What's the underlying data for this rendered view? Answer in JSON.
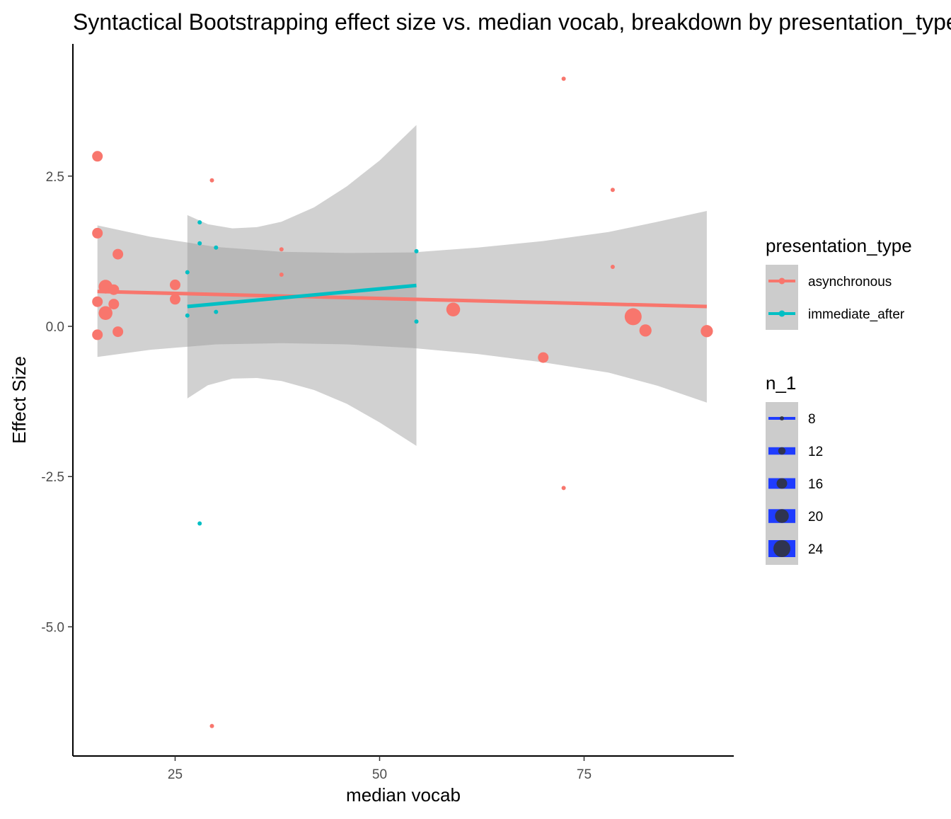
{
  "chart_data": {
    "type": "scatter",
    "title": "Syntactical Bootstrapping effect size vs. median vocab, breakdown by presentation_type",
    "xlabel": "median vocab",
    "ylabel": "Effect Size",
    "xlim": [
      12.5,
      93.3
    ],
    "ylim": [
      -7.15,
      4.7
    ],
    "x_ticks": [
      25,
      50,
      75
    ],
    "x_tick_labels": [
      "25",
      "50",
      "75"
    ],
    "y_ticks": [
      2.5,
      0.0,
      -2.5,
      -5.0
    ],
    "y_tick_labels": [
      "2.5",
      "0.0",
      "-2.5",
      "-5.0"
    ],
    "grid": false,
    "legend_position": "right",
    "colors": {
      "asynchronous": "#F8766D",
      "immediate_after": "#00BFC4",
      "ribbon": "#999999",
      "size_legend_key": "#1F3CFF"
    },
    "series": [
      {
        "name": "asynchronous",
        "points": [
          {
            "x": 15.5,
            "y": 2.83,
            "n": 16
          },
          {
            "x": 15.5,
            "y": 1.55,
            "n": 16
          },
          {
            "x": 15.5,
            "y": 0.41,
            "n": 16
          },
          {
            "x": 15.5,
            "y": -0.14,
            "n": 16
          },
          {
            "x": 16.5,
            "y": 0.66,
            "n": 20
          },
          {
            "x": 16.5,
            "y": 0.22,
            "n": 20
          },
          {
            "x": 17.5,
            "y": 0.61,
            "n": 16
          },
          {
            "x": 17.5,
            "y": 0.37,
            "n": 16
          },
          {
            "x": 18.0,
            "y": 1.2,
            "n": 16
          },
          {
            "x": 18.0,
            "y": -0.09,
            "n": 16
          },
          {
            "x": 25.0,
            "y": 0.69,
            "n": 16
          },
          {
            "x": 25.0,
            "y": 0.45,
            "n": 16
          },
          {
            "x": 29.5,
            "y": 2.43,
            "n": 8
          },
          {
            "x": 29.5,
            "y": -6.65,
            "n": 8
          },
          {
            "x": 38.0,
            "y": 1.28,
            "n": 8
          },
          {
            "x": 38.0,
            "y": 0.86,
            "n": 8
          },
          {
            "x": 59.0,
            "y": 0.28,
            "n": 20
          },
          {
            "x": 70.0,
            "y": -0.52,
            "n": 16
          },
          {
            "x": 72.5,
            "y": 4.12,
            "n": 8
          },
          {
            "x": 72.5,
            "y": -2.69,
            "n": 8
          },
          {
            "x": 78.5,
            "y": 2.27,
            "n": 8
          },
          {
            "x": 78.5,
            "y": 0.99,
            "n": 8
          },
          {
            "x": 81.0,
            "y": 0.16,
            "n": 24
          },
          {
            "x": 82.5,
            "y": -0.07,
            "n": 18
          },
          {
            "x": 90.0,
            "y": -0.08,
            "n": 18
          }
        ]
      },
      {
        "name": "immediate_after",
        "points": [
          {
            "x": 26.5,
            "y": 0.9,
            "n": 8
          },
          {
            "x": 26.5,
            "y": 0.18,
            "n": 8
          },
          {
            "x": 28.0,
            "y": 1.73,
            "n": 8
          },
          {
            "x": 28.0,
            "y": 1.38,
            "n": 8
          },
          {
            "x": 28.0,
            "y": -3.28,
            "n": 8
          },
          {
            "x": 30.0,
            "y": 1.31,
            "n": 8
          },
          {
            "x": 30.0,
            "y": 0.24,
            "n": 8
          },
          {
            "x": 54.5,
            "y": 1.25,
            "n": 8
          },
          {
            "x": 54.5,
            "y": 0.08,
            "n": 8
          }
        ]
      }
    ],
    "fits": [
      {
        "series": "asynchronous",
        "x": [
          15.5,
          90.0
        ],
        "y": [
          0.58,
          0.33
        ],
        "ribbon": {
          "x": [
            15.5,
            22,
            30,
            38,
            46,
            54,
            62,
            70,
            78,
            84,
            90
          ],
          "lower": [
            -0.51,
            -0.39,
            -0.3,
            -0.28,
            -0.3,
            -0.36,
            -0.46,
            -0.6,
            -0.77,
            -0.99,
            -1.27
          ],
          "upper": [
            1.68,
            1.49,
            1.32,
            1.24,
            1.22,
            1.23,
            1.31,
            1.42,
            1.57,
            1.74,
            1.92
          ]
        }
      },
      {
        "series": "immediate_after",
        "x": [
          26.5,
          54.5
        ],
        "y": [
          0.33,
          0.68
        ],
        "ribbon": {
          "x": [
            26.5,
            29,
            32,
            35,
            38,
            42,
            46,
            50,
            54.5
          ],
          "lower": [
            -1.2,
            -0.98,
            -0.87,
            -0.86,
            -0.91,
            -1.06,
            -1.29,
            -1.6,
            -1.99
          ],
          "upper": [
            1.85,
            1.7,
            1.63,
            1.65,
            1.74,
            1.98,
            2.33,
            2.76,
            3.35
          ]
        }
      }
    ],
    "legend_color": {
      "title": "presentation_type",
      "entries": [
        "asynchronous",
        "immediate_after"
      ]
    },
    "legend_size": {
      "title": "n_1",
      "entries": [
        8,
        12,
        16,
        20,
        24
      ],
      "labels": [
        "8",
        "12",
        "16",
        "20",
        "24"
      ]
    }
  }
}
